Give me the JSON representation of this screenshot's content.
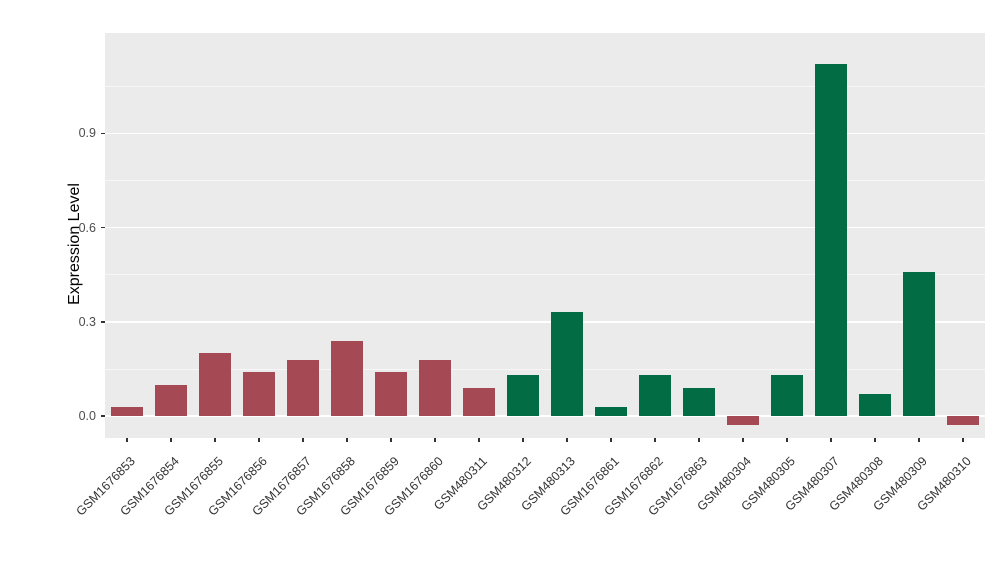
{
  "chart_data": {
    "type": "bar",
    "title": "",
    "xlabel": "",
    "ylabel": "Expression Level",
    "ylim": [
      -0.07,
      1.22
    ],
    "yticks": [
      0.0,
      0.3,
      0.6,
      0.9
    ],
    "ytick_labels": [
      "0.0",
      "0.3",
      "0.6",
      "0.9"
    ],
    "minor_gridlines": [
      0.15,
      0.45,
      0.75,
      1.05
    ],
    "grid": true,
    "legend": "none",
    "panel_bg": "#EBEBEB",
    "grid_color": "#FFFFFF",
    "categories": [
      "GSM1676853",
      "GSM1676854",
      "GSM1676855",
      "GSM1676856",
      "GSM1676857",
      "GSM1676858",
      "GSM1676859",
      "GSM1676860",
      "GSM480311",
      "GSM480312",
      "GSM480313",
      "GSM1676861",
      "GSM1676862",
      "GSM1676863",
      "GSM480304",
      "GSM480305",
      "GSM480307",
      "GSM480308",
      "GSM480309",
      "GSM480310"
    ],
    "values": [
      0.03,
      0.1,
      0.2,
      0.14,
      0.18,
      0.24,
      0.14,
      0.18,
      0.09,
      0.13,
      0.33,
      0.03,
      0.13,
      0.09,
      -0.03,
      0.13,
      1.12,
      0.07,
      0.46,
      -0.03
    ],
    "bar_groups": [
      "red",
      "red",
      "red",
      "red",
      "red",
      "red",
      "red",
      "red",
      "red",
      "green",
      "green",
      "green",
      "green",
      "green",
      "red",
      "green",
      "green",
      "green",
      "green",
      "red"
    ],
    "colors": {
      "red": "#A54A55",
      "green": "#026C45"
    }
  }
}
